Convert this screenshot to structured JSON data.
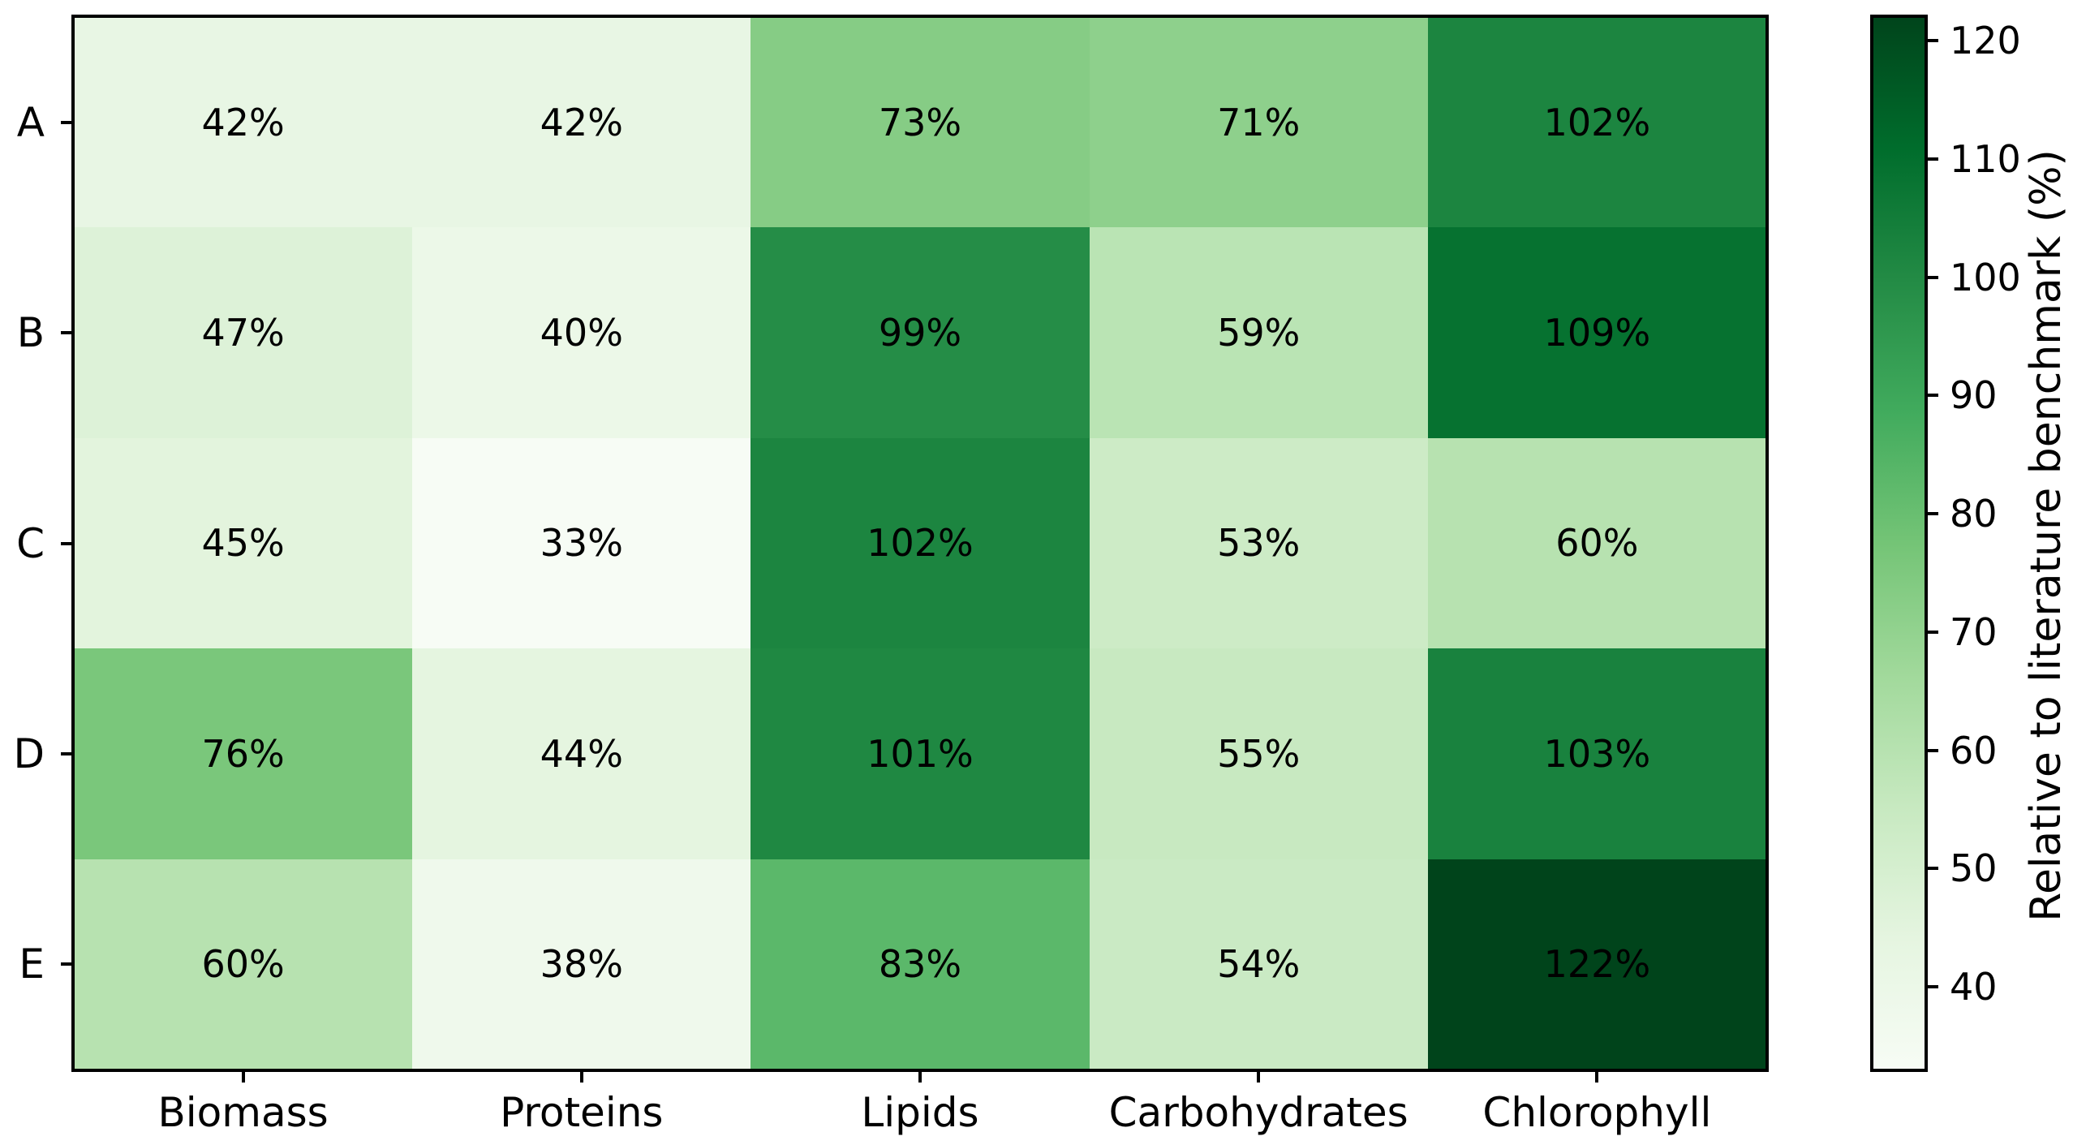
{
  "chart_data": {
    "type": "heatmap",
    "rows": [
      "A",
      "B",
      "C",
      "D",
      "E"
    ],
    "columns": [
      "Biomass",
      "Proteins",
      "Lipids",
      "Carbohydrates",
      "Chlorophyll"
    ],
    "values": [
      [
        42,
        42,
        73,
        71,
        102
      ],
      [
        47,
        40,
        99,
        59,
        109
      ],
      [
        45,
        33,
        102,
        53,
        60
      ],
      [
        76,
        44,
        101,
        55,
        103
      ],
      [
        60,
        38,
        83,
        54,
        122
      ]
    ],
    "cell_label_suffix": "%",
    "vmin": 33,
    "vmax": 122,
    "colormap_name": "Greens",
    "colormap_anchors": [
      "#f7fcf5",
      "#e5f5e0",
      "#c7e9c0",
      "#a1d99b",
      "#74c476",
      "#41ab5d",
      "#238b45",
      "#006d2c",
      "#00441b"
    ],
    "colorbar": {
      "label": "Relative to literature benchmark (%)",
      "ticks": [
        40,
        50,
        60,
        70,
        80,
        90,
        100,
        110,
        120
      ]
    },
    "grid": false,
    "text_color": "#000000",
    "axis_color": "#000000",
    "background_color": "#ffffff"
  }
}
